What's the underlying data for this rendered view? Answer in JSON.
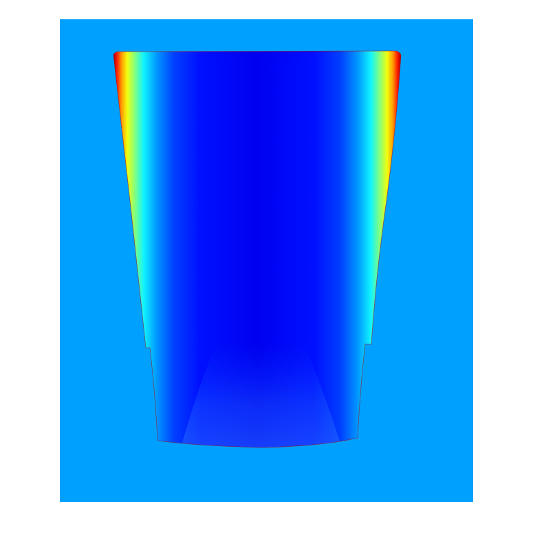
{
  "figure": {
    "kind": "contour-field-render",
    "colormap": "jet",
    "colors": {
      "background": "#ffffff",
      "plot_area": "#00a0ff",
      "jet_min": "#00008f",
      "jet_low": "#0000ff",
      "jet_mid": "#00ffff",
      "jet_high": "#ffff00",
      "jet_warm": "#ff8000",
      "jet_max": "#ff0000"
    }
  }
}
